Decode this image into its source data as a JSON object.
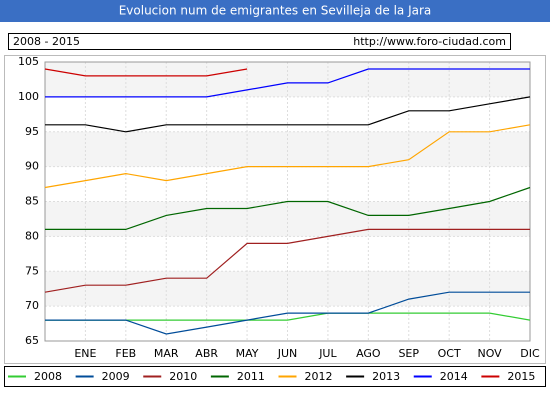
{
  "chart_data": {
    "type": "line",
    "title": "Evolucion num de emigrantes en Sevilleja de la Jara",
    "period": "2008 - 2015",
    "source": "http://www.foro-ciudad.com",
    "categories": [
      null,
      "ENE",
      "FEB",
      "MAR",
      "ABR",
      "MAY",
      "JUN",
      "JUL",
      "AGO",
      "SEP",
      "OCT",
      "NOV",
      "DIC"
    ],
    "ylim": [
      65,
      105
    ],
    "yticks": [
      65,
      70,
      75,
      80,
      85,
      90,
      95,
      100,
      105
    ],
    "grid": true,
    "legend": "bottom",
    "series": [
      {
        "name": "2008",
        "color": "#33cc33",
        "values": [
          68,
          68,
          68,
          68,
          68,
          68,
          68,
          69,
          69,
          69,
          69,
          69,
          68
        ]
      },
      {
        "name": "2009",
        "color": "#004c99",
        "values": [
          68,
          68,
          68,
          66,
          67,
          68,
          69,
          69,
          69,
          71,
          72,
          72,
          72
        ]
      },
      {
        "name": "2010",
        "color": "#a02020",
        "values": [
          72,
          73,
          73,
          74,
          74,
          79,
          79,
          80,
          81,
          81,
          81,
          81,
          81
        ]
      },
      {
        "name": "2011",
        "color": "#006600",
        "values": [
          81,
          81,
          81,
          83,
          84,
          84,
          85,
          85,
          83,
          83,
          84,
          85,
          87
        ]
      },
      {
        "name": "2012",
        "color": "#ffa500",
        "values": [
          87,
          88,
          89,
          88,
          89,
          90,
          90,
          90,
          90,
          91,
          95,
          95,
          96
        ]
      },
      {
        "name": "2013",
        "color": "#000000",
        "values": [
          96,
          96,
          95,
          96,
          96,
          96,
          96,
          96,
          96,
          98,
          98,
          99,
          100
        ]
      },
      {
        "name": "2014",
        "color": "#0000ff",
        "values": [
          100,
          100,
          100,
          100,
          100,
          101,
          102,
          102,
          104,
          104,
          104,
          104,
          104
        ]
      },
      {
        "name": "2015",
        "color": "#cc0000",
        "values": [
          104,
          103,
          103,
          103,
          103,
          104,
          null,
          null,
          null,
          null,
          null,
          null,
          null
        ]
      }
    ]
  }
}
